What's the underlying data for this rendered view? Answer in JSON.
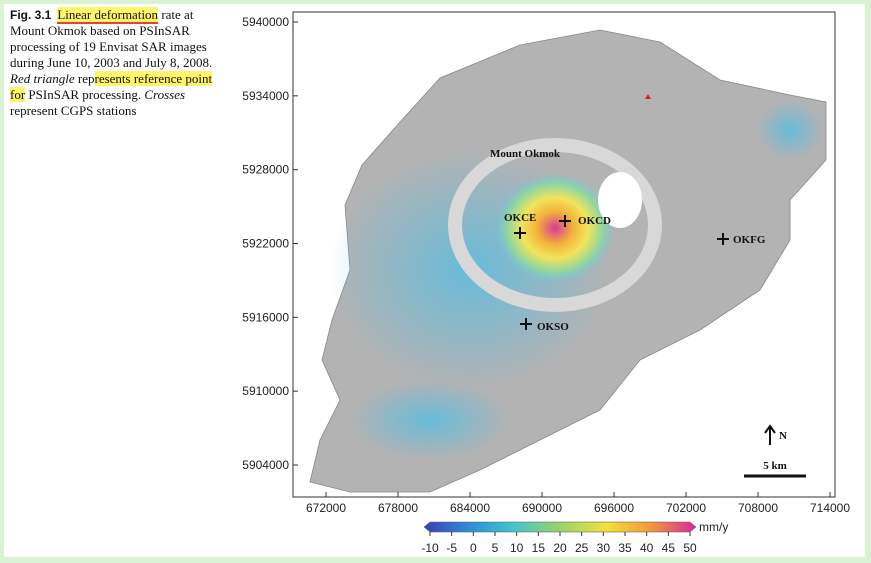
{
  "caption": {
    "segments": [
      "Fig. 3.1",
      "Linear deformation",
      " rate at Mount Okmok based on PSInSAR processing of 19 Envisat SAR images during June 10, 2003 and July 8, 2008. ",
      "Red triangle",
      " rep",
      "resents reference point for",
      " PSInSAR processing. ",
      "Crosses",
      " represent CGPS stations"
    ]
  },
  "map": {
    "yticks": [
      5940000,
      5934000,
      5928000,
      5922000,
      5916000,
      5910000,
      5904000
    ],
    "xticks": [
      672000,
      678000,
      684000,
      690000,
      696000,
      702000,
      708000,
      714000
    ],
    "volcano": "Mount Okmok",
    "stations": [
      "OKCE",
      "OKCD",
      "OKFG",
      "OKSO"
    ],
    "north": "N",
    "scale": "5 km"
  },
  "colorbar": {
    "ticks": [
      -10,
      -5,
      0,
      5,
      10,
      15,
      20,
      25,
      30,
      35,
      40,
      45,
      50
    ],
    "unit": "mm/y"
  }
}
